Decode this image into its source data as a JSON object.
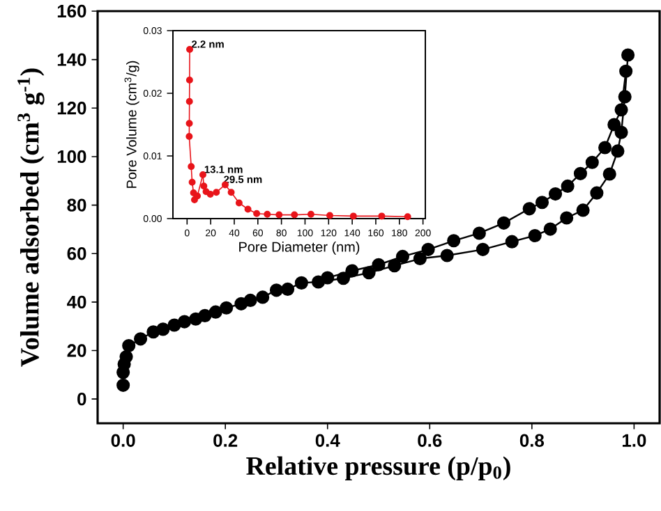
{
  "chart_data": [
    {
      "type": "line",
      "xlabel": "Relative pressure (p/p$_{0}$)",
      "ylabel": "Volume adsorbed (cm$^{3}$ g$^{-1}$)",
      "xlim": [
        -0.05,
        1.05
      ],
      "ylim": [
        -10,
        160
      ],
      "xticks": [
        {
          "value": 0,
          "label": "0.0"
        },
        {
          "value": 0.2,
          "label": "0.2"
        },
        {
          "value": 0.4,
          "label": "0.4"
        },
        {
          "value": 0.6,
          "label": "0.6"
        },
        {
          "value": 0.8,
          "label": "0.8"
        },
        {
          "value": 1.0,
          "label": "1.0"
        }
      ],
      "yticks": [
        0,
        20,
        40,
        60,
        80,
        100,
        120,
        140,
        160
      ],
      "marker": "circle",
      "line_style": "solid",
      "series": [
        {
          "color": "#000000",
          "x": [
            0.0,
            0.0,
            0.002,
            0.006,
            0.011,
            0.034,
            0.059,
            0.078,
            0.1,
            0.12,
            0.142,
            0.16,
            0.181,
            0.202,
            0.231,
            0.249,
            0.273,
            0.3,
            0.322,
            0.349,
            0.382,
            0.431,
            0.481,
            0.531,
            0.581,
            0.634,
            0.704,
            0.761,
            0.806,
            0.836,
            0.868,
            0.9,
            0.927,
            0.952,
            0.968,
            0.975,
            0.982,
            0.988
          ],
          "values": [
            5.7,
            11,
            14.4,
            17.4,
            22,
            24.8,
            27.7,
            28.8,
            30.5,
            31.9,
            33,
            34.4,
            35.9,
            37.6,
            39.3,
            40.7,
            42,
            44.9,
            45.3,
            47.9,
            48.3,
            49.8,
            52.1,
            55,
            57.9,
            59.2,
            61.7,
            64.9,
            67.4,
            70.1,
            74.7,
            77.9,
            85,
            92.8,
            102.3,
            110,
            124.7,
            141.9
          ]
        },
        {
          "color": "#000000",
          "x": [
            0.984,
            0.975,
            0.961,
            0.943,
            0.918,
            0.895,
            0.87,
            0.846,
            0.82,
            0.795,
            0.745,
            0.697,
            0.647,
            0.597,
            0.547,
            0.5,
            0.448,
            0.4
          ],
          "values": [
            135.2,
            119.3,
            113.2,
            103.7,
            97.6,
            93,
            87.8,
            84.6,
            81.1,
            78.5,
            72.6,
            68.4,
            65.3,
            61.7,
            58.8,
            55.4,
            52.9,
            50
          ]
        }
      ]
    },
    {
      "type": "line",
      "xlabel": "Pore Diameter (nm)",
      "ylabel": "Pore Volume (cm$^{3}$/g)",
      "xlim": [
        -12,
        202
      ],
      "ylim": [
        0,
        0.03
      ],
      "xticks": [
        0,
        20,
        40,
        60,
        80,
        100,
        120,
        140,
        160,
        180,
        200
      ],
      "yticks": [
        {
          "value": 0,
          "label": "0.00"
        },
        {
          "value": 0.01,
          "label": "0.01"
        },
        {
          "value": 0.02,
          "label": "0.02"
        },
        {
          "value": 0.03,
          "label": "0.03"
        }
      ],
      "marker": "circle",
      "line_style": "solid",
      "series": [
        {
          "color": "#e8141a",
          "x": [
            2.2,
            2.1,
            2.0,
            1.9,
            1.8,
            3.5,
            4.3,
            5.5,
            6.3,
            8.7,
            13.4,
            14.2,
            16.1,
            19.7,
            24.8,
            32.3,
            37.4,
            44.1,
            51.6,
            59,
            68,
            78,
            91,
            105,
            121,
            141,
            165,
            187
          ],
          "values": [
            0.027,
            0.0221,
            0.0187,
            0.0152,
            0.0131,
            0.0083,
            0.0058,
            0.0041,
            0.003,
            0.0036,
            0.007,
            0.0052,
            0.0043,
            0.0039,
            0.0042,
            0.0054,
            0.0042,
            0.0025,
            0.0015,
            0.0008,
            0.0007,
            0.0006,
            0.0006,
            0.0007,
            0.0005,
            0.0004,
            0.0004,
            0.0003
          ]
        }
      ],
      "annotations": [
        {
          "text": "2.2 nm",
          "x": 2.2,
          "y": 0.027
        },
        {
          "text": "13.1 nm",
          "x": 13.1,
          "y": 0.007
        },
        {
          "text": "29.5 nm",
          "x": 29.5,
          "y": 0.0054
        }
      ]
    }
  ]
}
